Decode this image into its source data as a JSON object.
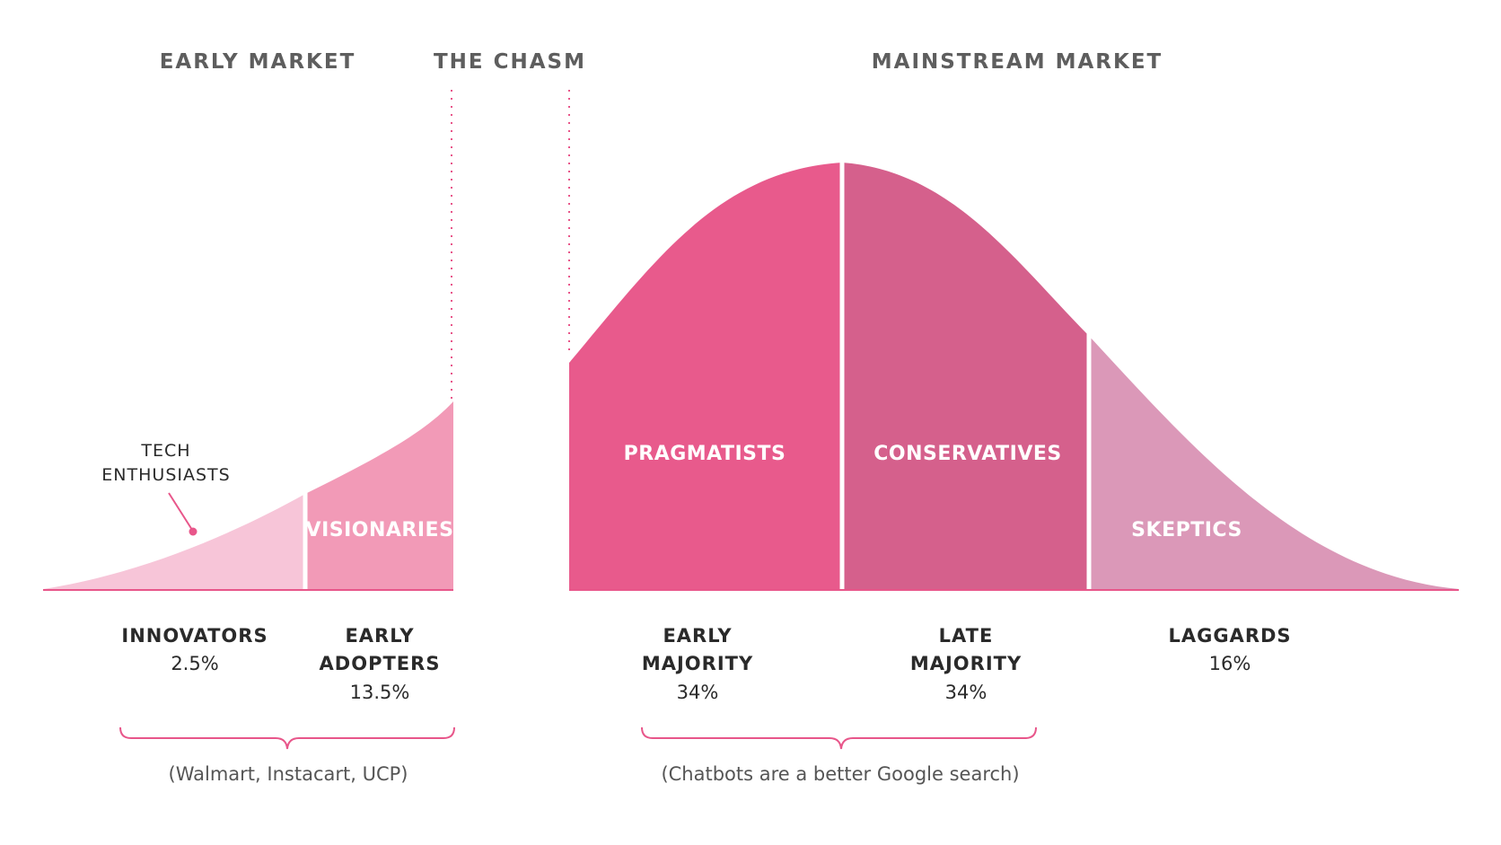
{
  "headers": {
    "early_market": "EARLY MARKET",
    "chasm": "THE CHASM",
    "mainstream_market": "MAINSTREAM MARKET"
  },
  "segments": {
    "visionaries": "VISIONARIES",
    "pragmatists": "PRAGMATISTS",
    "conservatives": "CONSERVATIVES",
    "skeptics": "SKEPTICS"
  },
  "annotation": {
    "line1": "TECH",
    "line2": "ENTHUSIASTS"
  },
  "groups": {
    "innovators": {
      "line1": "INNOVATORS",
      "pct": "2.5%"
    },
    "early_adopters": {
      "line1": "EARLY",
      "line2": "ADOPTERS",
      "pct": "13.5%"
    },
    "early_majority": {
      "line1": "EARLY",
      "line2": "MAJORITY",
      "pct": "34%"
    },
    "late_majority": {
      "line1": "LATE",
      "line2": "MAJORITY",
      "pct": "34%"
    },
    "laggards": {
      "line1": "LAGGARDS",
      "pct": "16%"
    }
  },
  "examples": {
    "early": "(Walmart, Instacart, UCP)",
    "mainstream": "(Chatbots are a better Google search)"
  },
  "colors": {
    "innovators": "#f7c5d8",
    "early_adopters": "#f29ab7",
    "early_majority": "#e85a8c",
    "late_majority": "#d5608c",
    "laggards": "#db98b8",
    "accent": "#e8568a"
  }
}
